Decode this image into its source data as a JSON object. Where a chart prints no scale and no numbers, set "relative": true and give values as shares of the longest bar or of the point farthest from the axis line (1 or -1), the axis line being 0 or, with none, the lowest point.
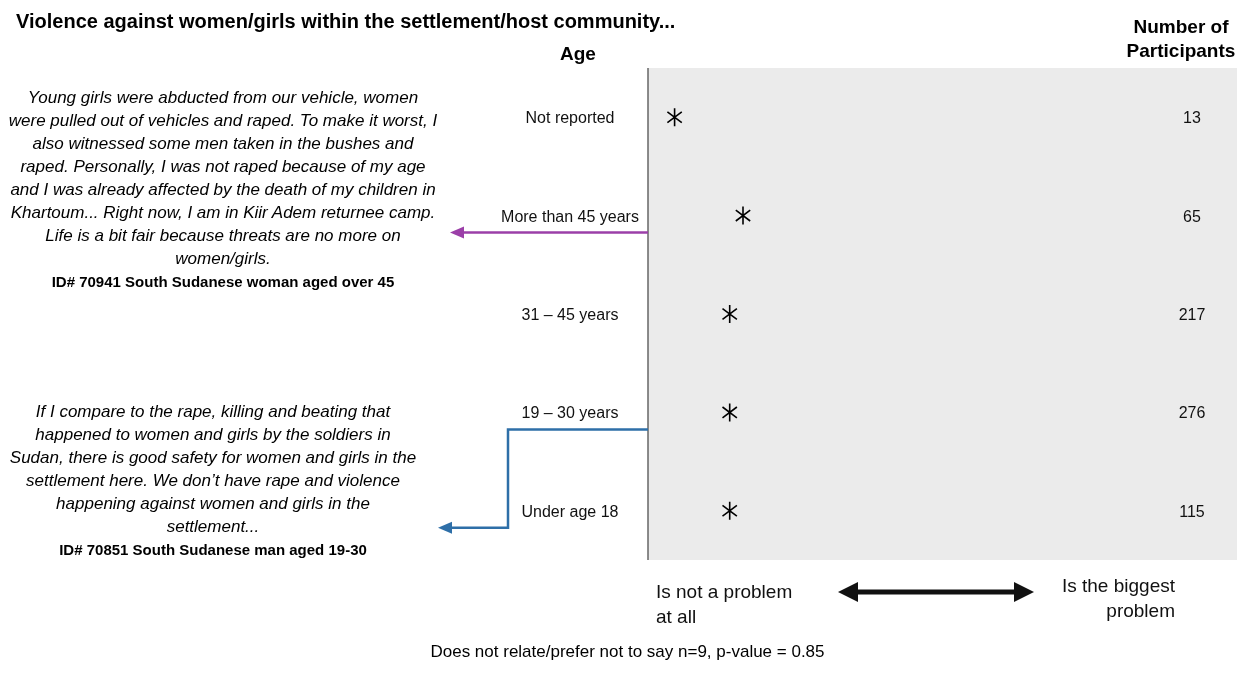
{
  "chart_data": {
    "type": "scatter",
    "orientation": "horizontal",
    "relative": true,
    "title": "Violence against women/girls within the settlement/host community...",
    "ylabel": "Age",
    "categories": [
      "Not reported",
      "More than 45 years",
      "31 – 45 years",
      "19 – 30 years",
      "Under age 18"
    ],
    "y2_categories": [
      "13",
      "65",
      "217",
      "276",
      "115"
    ],
    "series": [
      {
        "color": "#000000",
        "values": [
          0.28,
          1,
          0.86,
          0.86,
          0.86
        ]
      }
    ],
    "marker": "cross",
    "annotations": [
      "Young girls were abducted from our vehicle, women were pulled out of vehicles and raped. To make it worst, I also witnessed some men taken in the bushes and raped. Personally, I was not raped because of my age and I was already affected by the death of my children in Khartoum...  Right now, I am in Kiir Adem returnee camp. Life is a bit fair because threats are no more on women/girls.",
      "ID# 70941 South Sudanese woman aged over 45",
      "If I compare to the rape, killing and beating that happened to women and girls by the soldiers in Sudan, there is good safety for women and girls in the settlement here. We don’t have rape and violence happening against women and girls in the settlement...",
      "ID# 70851 South Sudanese man aged 19-30",
      "Is not a problem at all",
      "Is the biggest problem",
      "Does not relate/prefer not to say n=9, p-value = 0.85",
      "Number of Participants"
    ]
  }
}
